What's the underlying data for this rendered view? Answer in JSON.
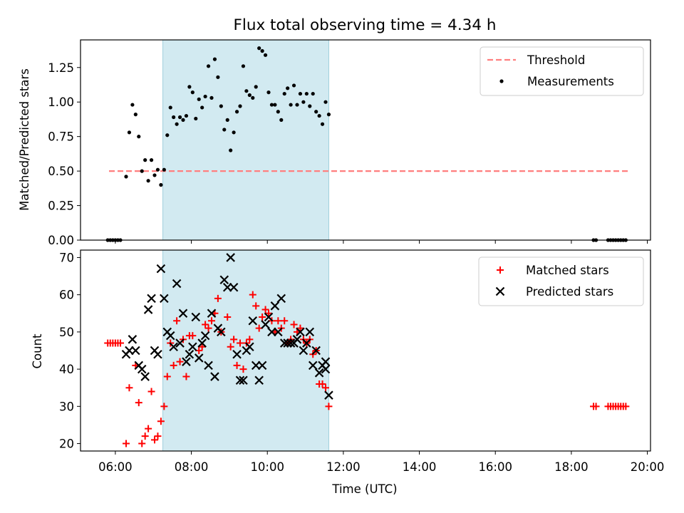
{
  "figure_title": "Flux total observing time = 4.34 h",
  "colors": {
    "threshold": "#ff7f7f",
    "measurement": "#000000",
    "matched": "#ff0000",
    "predicted": "#000000",
    "highlight": "#add8e6"
  },
  "chart_data": [
    {
      "type": "scatter",
      "ylabel": "Matched/Predicted stars",
      "xlim": [
        "05:05",
        "20:05"
      ],
      "ylim": [
        0,
        1.45
      ],
      "yticks": [
        "0.00",
        "0.25",
        "0.50",
        "0.75",
        "1.00",
        "1.25"
      ],
      "highlight_range": [
        "07:15",
        "11:37"
      ],
      "legend": {
        "position": "top-right",
        "entries": [
          "Threshold",
          "Measurements"
        ]
      },
      "threshold": {
        "name": "Threshold",
        "y": 0.5,
        "x_range": [
          "05:50",
          "19:30"
        ]
      },
      "series": [
        {
          "name": "Measurements",
          "points": [
            [
              "05:48",
              0
            ],
            [
              "05:52",
              0
            ],
            [
              "05:56",
              0
            ],
            [
              "06:00",
              0
            ],
            [
              "06:04",
              0
            ],
            [
              "06:08",
              0
            ],
            [
              "06:17",
              0.46
            ],
            [
              "06:22",
              0.78
            ],
            [
              "06:27",
              0.98
            ],
            [
              "06:32",
              0.91
            ],
            [
              "06:37",
              0.75
            ],
            [
              "06:42",
              0.5
            ],
            [
              "06:47",
              0.58
            ],
            [
              "06:52",
              0.43
            ],
            [
              "06:57",
              0.58
            ],
            [
              "07:02",
              0.47
            ],
            [
              "07:07",
              0.51
            ],
            [
              "07:12",
              0.4
            ],
            [
              "07:17",
              0.51
            ],
            [
              "07:22",
              0.76
            ],
            [
              "07:27",
              0.96
            ],
            [
              "07:32",
              0.89
            ],
            [
              "07:37",
              0.84
            ],
            [
              "07:42",
              0.89
            ],
            [
              "07:47",
              0.87
            ],
            [
              "07:52",
              0.9
            ],
            [
              "07:57",
              1.11
            ],
            [
              "08:02",
              1.07
            ],
            [
              "08:07",
              0.88
            ],
            [
              "08:12",
              1.02
            ],
            [
              "08:17",
              0.96
            ],
            [
              "08:22",
              1.04
            ],
            [
              "08:27",
              1.26
            ],
            [
              "08:32",
              1.03
            ],
            [
              "08:37",
              1.31
            ],
            [
              "08:42",
              1.18
            ],
            [
              "08:47",
              0.97
            ],
            [
              "08:52",
              0.8
            ],
            [
              "08:57",
              0.87
            ],
            [
              "09:02",
              0.65
            ],
            [
              "09:07",
              0.78
            ],
            [
              "09:12",
              0.93
            ],
            [
              "09:17",
              0.97
            ],
            [
              "09:22",
              1.26
            ],
            [
              "09:27",
              1.08
            ],
            [
              "09:32",
              1.05
            ],
            [
              "09:37",
              1.03
            ],
            [
              "09:42",
              1.11
            ],
            [
              "09:47",
              1.39
            ],
            [
              "09:52",
              1.37
            ],
            [
              "09:57",
              1.34
            ],
            [
              "10:02",
              1.07
            ],
            [
              "10:07",
              0.98
            ],
            [
              "10:12",
              0.98
            ],
            [
              "10:17",
              0.93
            ],
            [
              "10:22",
              0.87
            ],
            [
              "10:27",
              1.06
            ],
            [
              "10:32",
              1.1
            ],
            [
              "10:37",
              0.98
            ],
            [
              "10:42",
              1.12
            ],
            [
              "10:47",
              0.98
            ],
            [
              "10:52",
              1.06
            ],
            [
              "10:57",
              1.0
            ],
            [
              "11:02",
              1.06
            ],
            [
              "11:07",
              0.97
            ],
            [
              "11:12",
              1.06
            ],
            [
              "11:17",
              0.93
            ],
            [
              "11:22",
              0.9
            ],
            [
              "11:27",
              0.84
            ],
            [
              "11:32",
              1.0
            ],
            [
              "11:37",
              0.91
            ],
            [
              "18:35",
              0
            ],
            [
              "18:39",
              0
            ],
            [
              "18:58",
              0
            ],
            [
              "19:02",
              0
            ],
            [
              "19:06",
              0
            ],
            [
              "19:10",
              0
            ],
            [
              "19:14",
              0
            ],
            [
              "19:18",
              0
            ],
            [
              "19:22",
              0
            ],
            [
              "19:26",
              0
            ]
          ]
        }
      ]
    },
    {
      "type": "scatter",
      "xlabel": "Time (UTC)",
      "ylabel": "Count",
      "xlim": [
        "05:05",
        "20:05"
      ],
      "ylim": [
        18,
        72
      ],
      "yticks": [
        "20",
        "30",
        "40",
        "50",
        "60",
        "70"
      ],
      "xticks": [
        "06:00",
        "08:00",
        "10:00",
        "12:00",
        "14:00",
        "16:00",
        "18:00",
        "20:00"
      ],
      "highlight_range": [
        "07:15",
        "11:37"
      ],
      "legend": {
        "position": "top-right",
        "entries": [
          "Matched stars",
          "Predicted stars"
        ]
      },
      "series": [
        {
          "name": "Matched stars",
          "marker": "plus",
          "points": [
            [
              "05:48",
              47
            ],
            [
              "05:52",
              47
            ],
            [
              "05:56",
              47
            ],
            [
              "06:00",
              47
            ],
            [
              "06:04",
              47
            ],
            [
              "06:08",
              47
            ],
            [
              "06:17",
              20
            ],
            [
              "06:22",
              35
            ],
            [
              "06:32",
              41
            ],
            [
              "06:37",
              31
            ],
            [
              "06:42",
              20
            ],
            [
              "06:47",
              22
            ],
            [
              "06:52",
              24
            ],
            [
              "06:57",
              34
            ],
            [
              "07:02",
              21
            ],
            [
              "07:07",
              22
            ],
            [
              "07:12",
              26
            ],
            [
              "07:17",
              30
            ],
            [
              "07:22",
              38
            ],
            [
              "07:27",
              47
            ],
            [
              "07:32",
              41
            ],
            [
              "07:37",
              53
            ],
            [
              "07:42",
              42
            ],
            [
              "07:47",
              48
            ],
            [
              "07:52",
              38
            ],
            [
              "07:57",
              49
            ],
            [
              "08:02",
              49
            ],
            [
              "08:12",
              45
            ],
            [
              "08:17",
              46
            ],
            [
              "08:22",
              52
            ],
            [
              "08:27",
              51
            ],
            [
              "08:32",
              53
            ],
            [
              "08:37",
              55
            ],
            [
              "08:42",
              59
            ],
            [
              "08:47",
              50
            ],
            [
              "08:57",
              54
            ],
            [
              "09:02",
              46
            ],
            [
              "09:07",
              48
            ],
            [
              "09:12",
              41
            ],
            [
              "09:17",
              47
            ],
            [
              "09:22",
              40
            ],
            [
              "09:27",
              47
            ],
            [
              "09:32",
              48
            ],
            [
              "09:37",
              60
            ],
            [
              "09:42",
              57
            ],
            [
              "09:47",
              51
            ],
            [
              "09:52",
              54
            ],
            [
              "09:57",
              56
            ],
            [
              "10:02",
              55
            ],
            [
              "10:07",
              53
            ],
            [
              "10:12",
              50
            ],
            [
              "10:17",
              53
            ],
            [
              "10:22",
              51
            ],
            [
              "10:27",
              53
            ],
            [
              "10:32",
              47
            ],
            [
              "10:37",
              48
            ],
            [
              "10:42",
              52
            ],
            [
              "10:47",
              50
            ],
            [
              "10:52",
              51
            ],
            [
              "10:57",
              48
            ],
            [
              "11:02",
              47
            ],
            [
              "11:07",
              48
            ],
            [
              "11:12",
              44
            ],
            [
              "11:17",
              45
            ],
            [
              "11:22",
              36
            ],
            [
              "11:27",
              36
            ],
            [
              "11:32",
              35
            ],
            [
              "11:37",
              30
            ],
            [
              "18:35",
              30
            ],
            [
              "18:39",
              30
            ],
            [
              "18:58",
              30
            ],
            [
              "19:02",
              30
            ],
            [
              "19:06",
              30
            ],
            [
              "19:10",
              30
            ],
            [
              "19:14",
              30
            ],
            [
              "19:18",
              30
            ],
            [
              "19:22",
              30
            ],
            [
              "19:26",
              30
            ]
          ]
        },
        {
          "name": "Predicted stars",
          "marker": "x",
          "points": [
            [
              "06:17",
              44
            ],
            [
              "06:22",
              45
            ],
            [
              "06:27",
              48
            ],
            [
              "06:32",
              45
            ],
            [
              "06:37",
              41
            ],
            [
              "06:42",
              40
            ],
            [
              "06:47",
              38
            ],
            [
              "06:52",
              56
            ],
            [
              "06:57",
              59
            ],
            [
              "07:02",
              45
            ],
            [
              "07:07",
              44
            ],
            [
              "07:12",
              67
            ],
            [
              "07:17",
              59
            ],
            [
              "07:22",
              50
            ],
            [
              "07:27",
              49
            ],
            [
              "07:32",
              46
            ],
            [
              "07:37",
              63
            ],
            [
              "07:42",
              47
            ],
            [
              "07:47",
              55
            ],
            [
              "07:52",
              42
            ],
            [
              "07:57",
              44
            ],
            [
              "08:02",
              46
            ],
            [
              "08:07",
              54
            ],
            [
              "08:12",
              43
            ],
            [
              "08:17",
              47
            ],
            [
              "08:22",
              49
            ],
            [
              "08:27",
              41
            ],
            [
              "08:32",
              55
            ],
            [
              "08:37",
              38
            ],
            [
              "08:42",
              51
            ],
            [
              "08:47",
              50
            ],
            [
              "08:52",
              64
            ],
            [
              "08:57",
              62
            ],
            [
              "09:02",
              70
            ],
            [
              "09:07",
              62
            ],
            [
              "09:12",
              44
            ],
            [
              "09:17",
              37
            ],
            [
              "09:22",
              37
            ],
            [
              "09:27",
              45
            ],
            [
              "09:32",
              46
            ],
            [
              "09:37",
              53
            ],
            [
              "09:42",
              41
            ],
            [
              "09:47",
              37
            ],
            [
              "09:52",
              41
            ],
            [
              "09:57",
              52
            ],
            [
              "10:02",
              54
            ],
            [
              "10:07",
              50
            ],
            [
              "10:12",
              57
            ],
            [
              "10:17",
              50
            ],
            [
              "10:22",
              59
            ],
            [
              "10:27",
              47
            ],
            [
              "10:32",
              47
            ],
            [
              "10:37",
              47
            ],
            [
              "10:42",
              47
            ],
            [
              "10:47",
              48
            ],
            [
              "10:52",
              50
            ],
            [
              "10:57",
              45
            ],
            [
              "11:02",
              47
            ],
            [
              "11:07",
              50
            ],
            [
              "11:12",
              41
            ],
            [
              "11:17",
              45
            ],
            [
              "11:22",
              39
            ],
            [
              "11:27",
              41
            ],
            [
              "11:32",
              42
            ],
            [
              "11:37",
              33
            ],
            [
              "11:32",
              40
            ]
          ]
        }
      ]
    }
  ]
}
